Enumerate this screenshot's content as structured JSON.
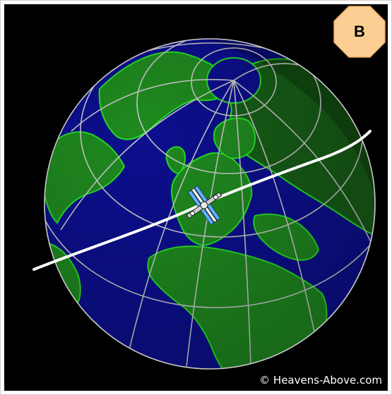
{
  "badge": {
    "label": "B",
    "color": "#fbcf94"
  },
  "copyright": "© Heavens-Above.com",
  "colors": {
    "background": "#000000",
    "ocean": "#0c0f8e",
    "land": "#1f8a1f",
    "land_shaded": "#175e17",
    "coastline": "#26e026",
    "grid": "#c8c8c8",
    "ground_track": "#ffffff"
  },
  "icons": {
    "satellite": "iss-satellite-icon"
  }
}
